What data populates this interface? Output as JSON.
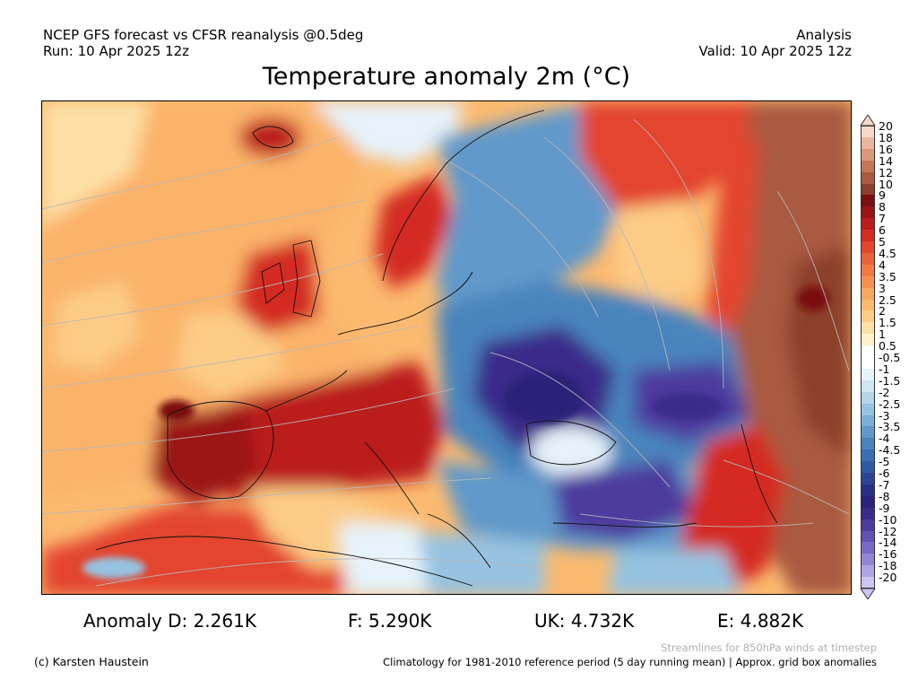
{
  "header": {
    "left_line1": "NCEP GFS forecast vs CFSR reanalysis @0.5deg",
    "left_line2": "Run: 10 Apr 2025 12z",
    "right_line1": "Analysis",
    "right_line2": "Valid: 10 Apr 2025 12z"
  },
  "title": "Temperature anomaly 2m (°C)",
  "legend": {
    "labels": [
      "20",
      "18",
      "16",
      "14",
      "12",
      "10",
      "9",
      "8",
      "7",
      "6",
      "5",
      "4.5",
      "4",
      "3.5",
      "3",
      "2.5",
      "2",
      "1.5",
      "1",
      "0.5",
      "-0.5",
      "-1",
      "-1.5",
      "-2",
      "-2.5",
      "-3",
      "-3.5",
      "-4",
      "-4.5",
      "-5",
      "-6",
      "-7",
      "-8",
      "-9",
      "-10",
      "-12",
      "-14",
      "-16",
      "-18",
      "-20"
    ],
    "colors": [
      "#f8d9c8",
      "#e9b79d",
      "#d99877",
      "#c47757",
      "#a95a3f",
      "#8c3f2b",
      "#7a0f10",
      "#9c1414",
      "#bb1d1b",
      "#d42b22",
      "#e3452d",
      "#ec6238",
      "#f27a42",
      "#f69050",
      "#f9a75f",
      "#fbba70",
      "#fccc86",
      "#fde0a6",
      "#fff2c9",
      "#ffffff",
      "#ffffff",
      "#e6f3fa",
      "#cfe6f3",
      "#b3d6eb",
      "#96c3e1",
      "#7aafd6",
      "#6099ca",
      "#4a84bd",
      "#3a6fb0",
      "#2f5ba2",
      "#2a4594",
      "#272f85",
      "#2b2279",
      "#3a2b8a",
      "#4d3a9e",
      "#6250b3",
      "#7a6ac6",
      "#9484d6",
      "#b0a3e4",
      "#cdc4f1"
    ]
  },
  "stats": {
    "d": "Anomaly D: 2.261K",
    "f": "F: 5.290K",
    "uk": "UK: 4.732K",
    "e": "E: 4.882K"
  },
  "footer": {
    "copyright": "(c) Karsten Haustein",
    "streamlines": "Streamlines for 850hPa winds at timestep",
    "climatology": "Climatology for 1981-2010 reference period (5 day running mean) | Approx. grid box anomalies"
  }
}
